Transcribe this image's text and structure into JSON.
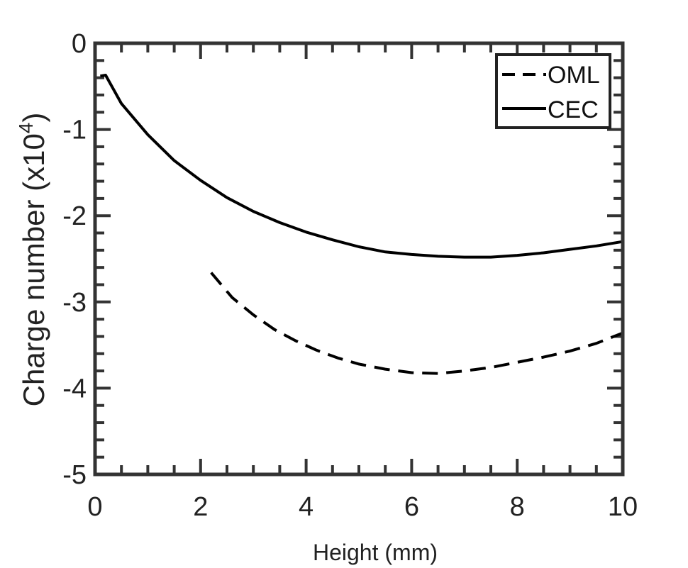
{
  "chart_data": {
    "type": "line",
    "title": "",
    "xlabel": "Height (mm)",
    "ylabel": {
      "main": "Charge number (x10",
      "exponent": "4",
      "close": ")"
    },
    "xlim": [
      0,
      10
    ],
    "ylim": [
      -5,
      0
    ],
    "xticks": [
      0,
      2,
      4,
      6,
      8,
      10
    ],
    "xtick_labels": [
      "0",
      "2",
      "4",
      "6",
      "8",
      "10"
    ],
    "yticks": [
      0,
      -1,
      -2,
      -3,
      -4,
      -5
    ],
    "ytick_labels": [
      "0",
      "-1",
      "-2",
      "-3",
      "-4",
      "-5"
    ],
    "grid": false,
    "legend_position": "top-right",
    "series": [
      {
        "name": "OML",
        "style": "dashed",
        "color": "#000000",
        "x": [
          2.2,
          2.6,
          3.0,
          3.4,
          3.8,
          4.2,
          4.6,
          5.0,
          5.5,
          6.0,
          6.5,
          7.0,
          7.5,
          8.0,
          8.5,
          9.0,
          9.5,
          10.0
        ],
        "y": [
          -2.66,
          -2.95,
          -3.15,
          -3.32,
          -3.45,
          -3.56,
          -3.65,
          -3.72,
          -3.78,
          -3.82,
          -3.83,
          -3.8,
          -3.76,
          -3.7,
          -3.64,
          -3.57,
          -3.48,
          -3.36
        ]
      },
      {
        "name": "CEC",
        "style": "solid",
        "color": "#000000",
        "x": [
          0.1,
          0.2,
          0.5,
          1.0,
          1.5,
          2.0,
          2.5,
          3.0,
          3.5,
          4.0,
          4.5,
          5.0,
          5.5,
          6.0,
          6.5,
          7.0,
          7.5,
          8.0,
          8.5,
          9.0,
          9.5,
          10.0
        ],
        "y": [
          -0.38,
          -0.37,
          -0.7,
          -1.06,
          -1.36,
          -1.59,
          -1.79,
          -1.95,
          -2.08,
          -2.19,
          -2.28,
          -2.36,
          -2.42,
          -2.45,
          -2.47,
          -2.48,
          -2.48,
          -2.46,
          -2.43,
          -2.39,
          -2.35,
          -2.3
        ]
      }
    ]
  }
}
